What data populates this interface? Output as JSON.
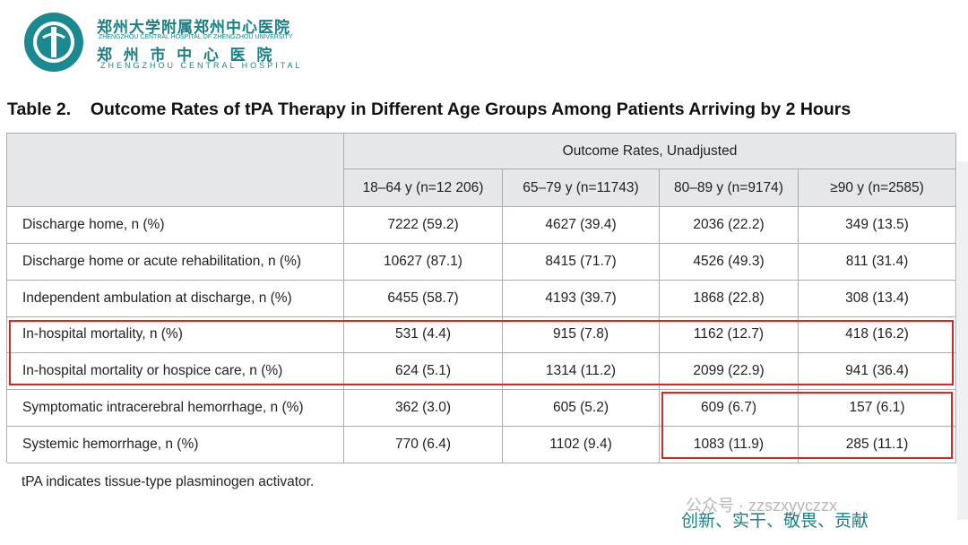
{
  "logo": {
    "cn_line1": "郑州大学附属郑州中心医院",
    "en_line1": "ZHENGZHOU CENTRAL HOSPITAL OF ZHENGZHOU UNIVERSITY",
    "cn_line2": "郑 州 市 中 心 医 院",
    "en_line2": "ZHENGZHOU CENTRAL HOSPITAL"
  },
  "title": "Table 2.    Outcome Rates of tPA Therapy in Different Age Groups Among Patients Arriving by 2 Hours",
  "table": {
    "group_header": "Outcome Rates, Unadjusted",
    "columns": [
      "18–64 y (n=12 206)",
      "65–79 y (n=11743)",
      "80–89 y (n=9174)",
      "≥90 y (n=2585)"
    ],
    "rows": [
      [
        "Discharge home, n (%)",
        "7222 (59.2)",
        "4627 (39.4)",
        "2036 (22.2)",
        "349 (13.5)"
      ],
      [
        "Discharge home or acute rehabilitation, n (%)",
        "10627 (87.1)",
        "8415 (71.7)",
        "4526 (49.3)",
        "811 (31.4)"
      ],
      [
        "Independent ambulation at discharge, n (%)",
        "6455 (58.7)",
        "4193 (39.7)",
        "1868 (22.8)",
        "308 (13.4)"
      ],
      [
        "In-hospital mortality, n (%)",
        "531 (4.4)",
        "915 (7.8)",
        "1162 (12.7)",
        "418 (16.2)"
      ],
      [
        "In-hospital mortality or hospice care, n (%)",
        "624 (5.1)",
        "1314 (11.2)",
        "2099 (22.9)",
        "941 (36.4)"
      ],
      [
        "Symptomatic intracerebral hemorrhage, n (%)",
        "362 (3.0)",
        "605 (5.2)",
        "609 (6.7)",
        "157 (6.1)"
      ],
      [
        "Systemic hemorrhage, n (%)",
        "770 (6.4)",
        "1102 (9.4)",
        "1083 (11.9)",
        "285 (11.1)"
      ]
    ]
  },
  "footnote": "tPA indicates tissue-type plasminogen activator.",
  "watermark": {
    "account": "公众号 · zzszxyyczzx",
    "motto": "创新、实干、敬畏、贡献"
  }
}
